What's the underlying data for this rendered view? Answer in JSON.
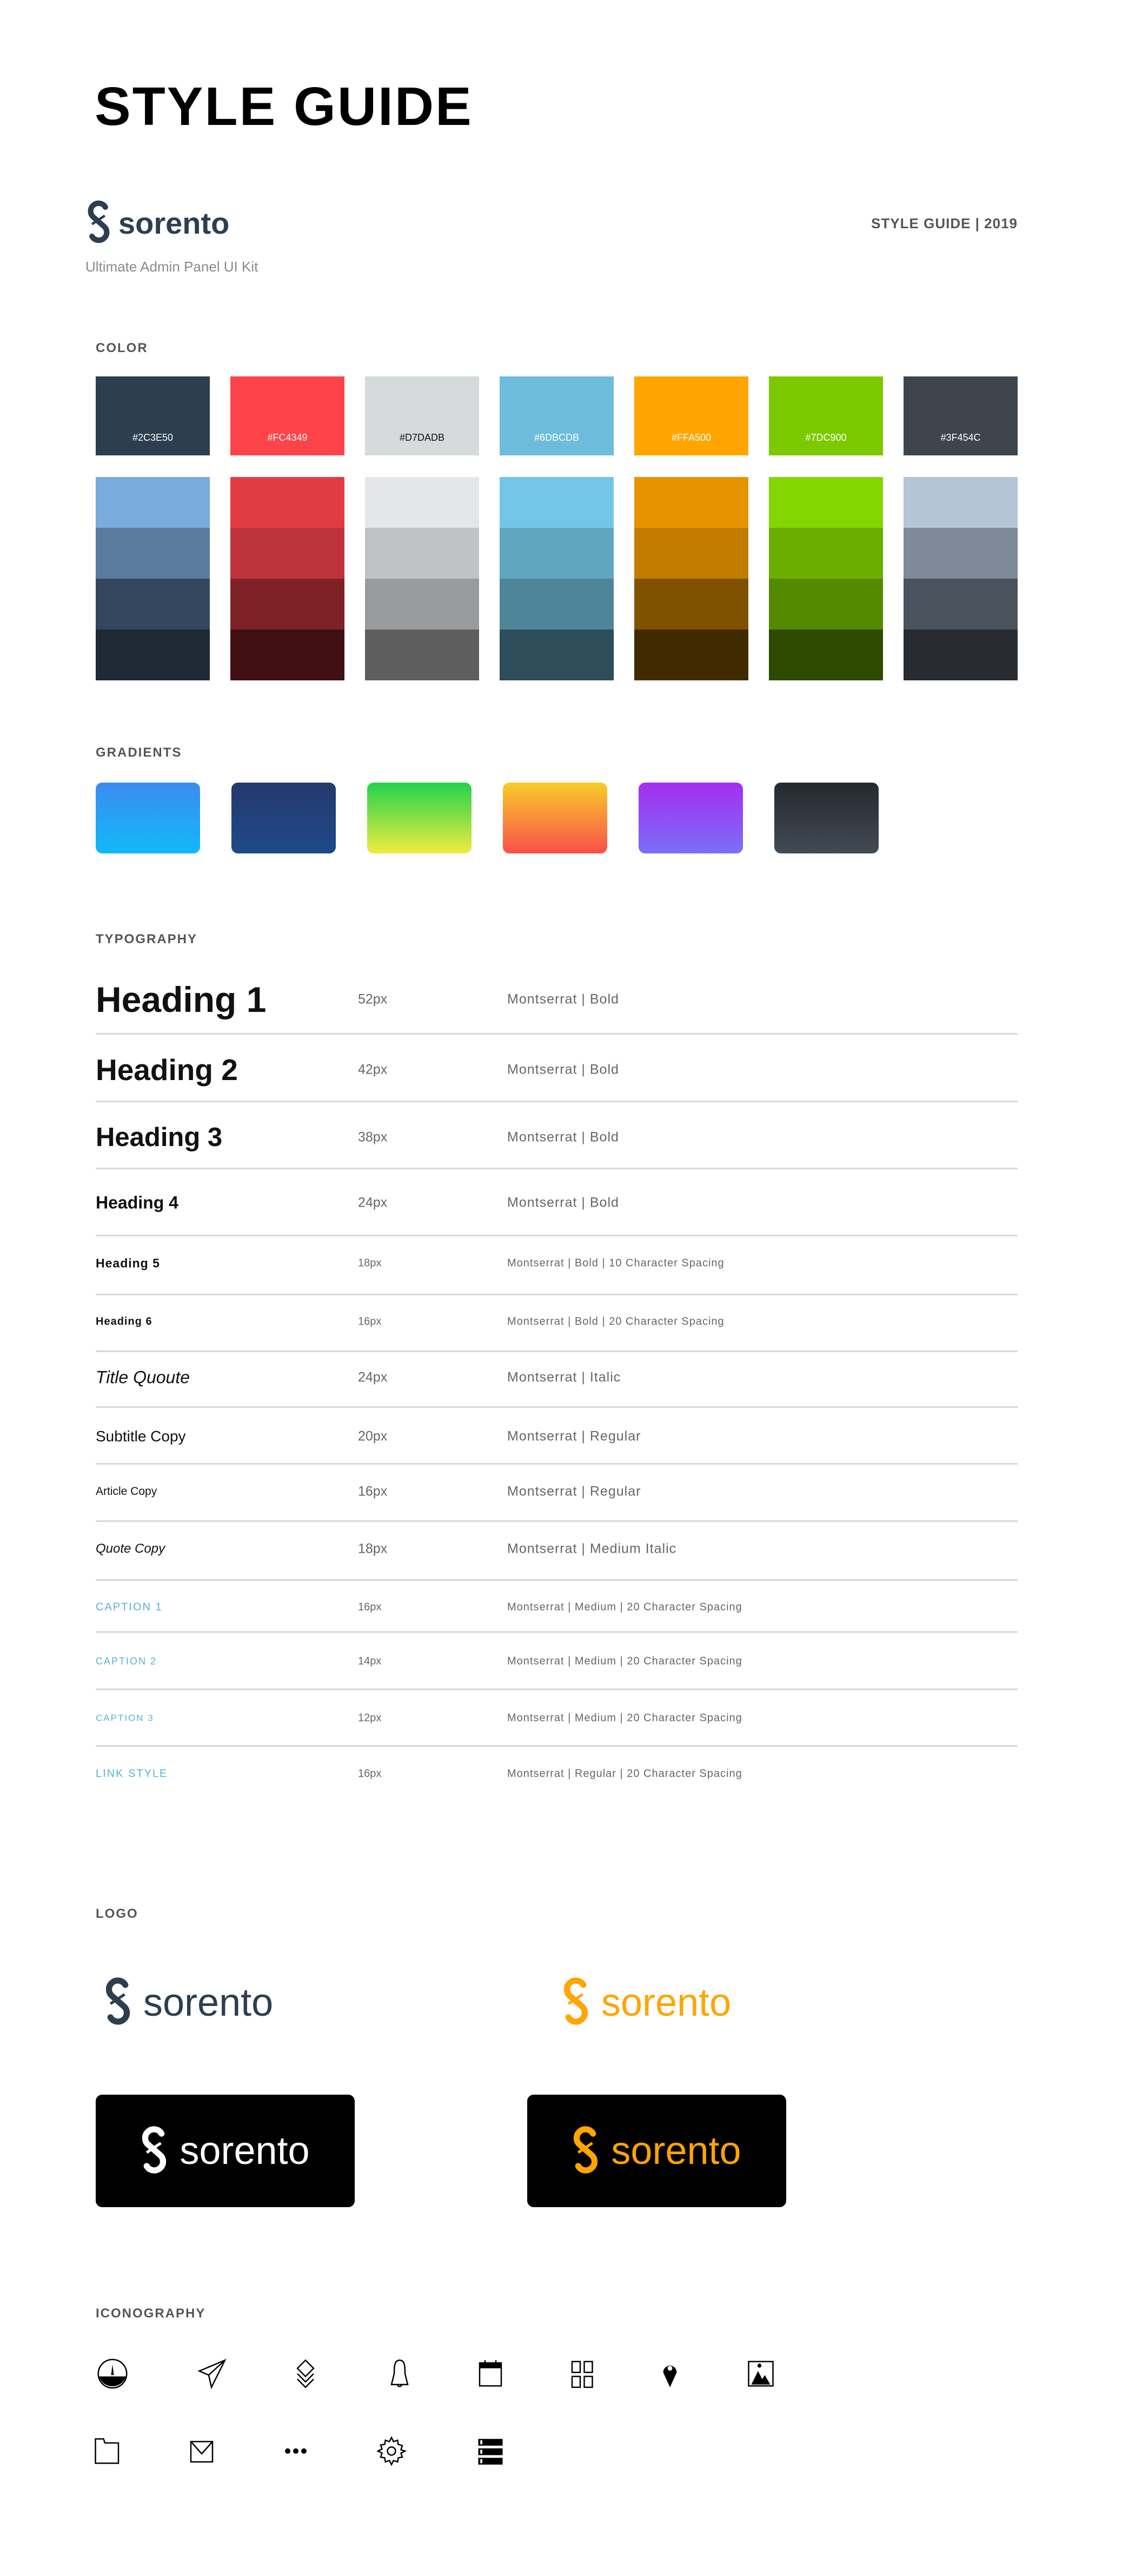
{
  "header": {
    "title": "STYLE GUIDE",
    "brand": "sorento",
    "tagline": "Ultimate Admin Panel UI Kit",
    "edition": "STYLE GUIDE | 2019"
  },
  "colors": {
    "label": "COLOR",
    "primary": [
      {
        "hex": "#2C3E50",
        "text": "#ffffff"
      },
      {
        "hex": "#FC4349",
        "text": "#ffffff"
      },
      {
        "hex": "#D7DADB",
        "text": "#111111"
      },
      {
        "hex": "#6DBCDB",
        "text": "#ffffff"
      },
      {
        "hex": "#FFA500",
        "text": "#ffffff"
      },
      {
        "hex": "#7DC900",
        "text": "#ffffff"
      },
      {
        "hex": "#3F454C",
        "text": "#ffffff"
      }
    ],
    "shades": [
      [
        "#79abdb",
        "#5a7a9e",
        "#33475e",
        "#1e2935"
      ],
      [
        "#e23c43",
        "#be323a",
        "#7e2228",
        "#3f0f12"
      ],
      [
        "#e3e7e8",
        "#c1c2c4",
        "#9a9b9c",
        "#5e5e5e"
      ],
      [
        "#74c6e8",
        "#5fa6c1",
        "#4d8699",
        "#2e4c59"
      ],
      [
        "#e59400",
        "#c27c00",
        "#805200",
        "#402a00"
      ],
      [
        "#84d600",
        "#6bae00",
        "#548a00",
        "#2e4a00"
      ],
      [
        "#b4c5d6",
        "#7e8a97",
        "#4a525b",
        "#282c31"
      ]
    ]
  },
  "gradients": {
    "label": "GRADIENTS",
    "items": [
      [
        "#3a8cf0",
        "#12b8f8"
      ],
      [
        "#25396c",
        "#1e4a8a"
      ],
      [
        "#22d24c",
        "#f0ec40"
      ],
      [
        "#f8cc2a",
        "#f8504a"
      ],
      [
        "#a42ef0",
        "#7a70f8"
      ],
      [
        "#25292f",
        "#434b55"
      ]
    ]
  },
  "typography": {
    "label": "TYPOGRAPHY",
    "link_color": "#5ab0d8",
    "rows": [
      {
        "name": "Heading 1",
        "size": "52px",
        "desc": "Montserrat | Bold"
      },
      {
        "name": "Heading 2",
        "size": "42px",
        "desc": "Montserrat | Bold"
      },
      {
        "name": "Heading 3",
        "size": "38px",
        "desc": "Montserrat | Bold"
      },
      {
        "name": "Heading 4",
        "size": "24px",
        "desc": "Montserrat | Bold"
      },
      {
        "name": "Heading 5",
        "size": "18px",
        "desc": "Montserrat | Bold | 10 Character Spacing"
      },
      {
        "name": "Heading 6",
        "size": "16px",
        "desc": "Montserrat | Bold | 20 Character Spacing"
      },
      {
        "name": "Title Quoute",
        "size": "24px",
        "desc": "Montserrat | Italic"
      },
      {
        "name": "Subtitle Copy",
        "size": "20px",
        "desc": "Montserrat | Regular"
      },
      {
        "name": "Article Copy",
        "size": "16px",
        "desc": "Montserrat | Regular"
      },
      {
        "name": "Quote Copy",
        "size": "18px",
        "desc": "Montserrat | Medium Italic"
      },
      {
        "name": "CAPTION 1",
        "size": "16px",
        "desc": "Montserrat | Medium | 20 Character Spacing"
      },
      {
        "name": "CAPTION 2",
        "size": "14px",
        "desc": "Montserrat | Medium | 20 Character Spacing"
      },
      {
        "name": "CAPTION 3",
        "size": "12px",
        "desc": "Montserrat | Medium | 20 Character Spacing"
      },
      {
        "name": "LINK STYLE",
        "size": "16px",
        "desc": "Montserrat | Regular | 20 Character Spacing"
      }
    ]
  },
  "logo": {
    "label": "LOGO",
    "word": "sorento",
    "variants": [
      {
        "color": "#2c3e50",
        "background": "#ffffff"
      },
      {
        "color": "#ffa500",
        "background": "#ffffff"
      },
      {
        "color": "#ffffff",
        "background": "#000000"
      },
      {
        "color": "#ffa500",
        "background": "#000000"
      }
    ]
  },
  "iconography": {
    "label": "ICONOGRAPHY",
    "icons": [
      "dashboard-icon",
      "send-icon",
      "layers-icon",
      "bell-icon",
      "calendar-icon",
      "grid-icon",
      "map-pin-icon",
      "image-icon",
      "folder-icon",
      "mail-icon",
      "more-icon",
      "gear-icon",
      "server-icon"
    ]
  }
}
